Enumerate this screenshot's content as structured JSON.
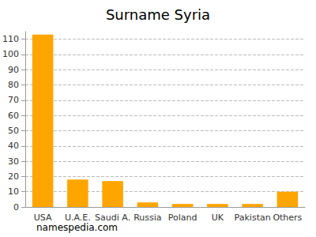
{
  "chart_data": {
    "type": "bar",
    "title": "Surname Syria",
    "categories": [
      "USA",
      "U.A.E.",
      "Saudi A.",
      "Russia",
      "Poland",
      "UK",
      "Pakistan",
      "Others"
    ],
    "values": [
      113,
      18,
      17,
      3,
      2,
      2,
      2,
      10
    ],
    "color": "#ffa500",
    "ylim": [
      0,
      115
    ],
    "yticks": [
      0,
      10,
      20,
      30,
      40,
      50,
      60,
      70,
      80,
      90,
      100,
      110
    ],
    "grid": true,
    "annotations": [
      "namespedia.com"
    ]
  }
}
